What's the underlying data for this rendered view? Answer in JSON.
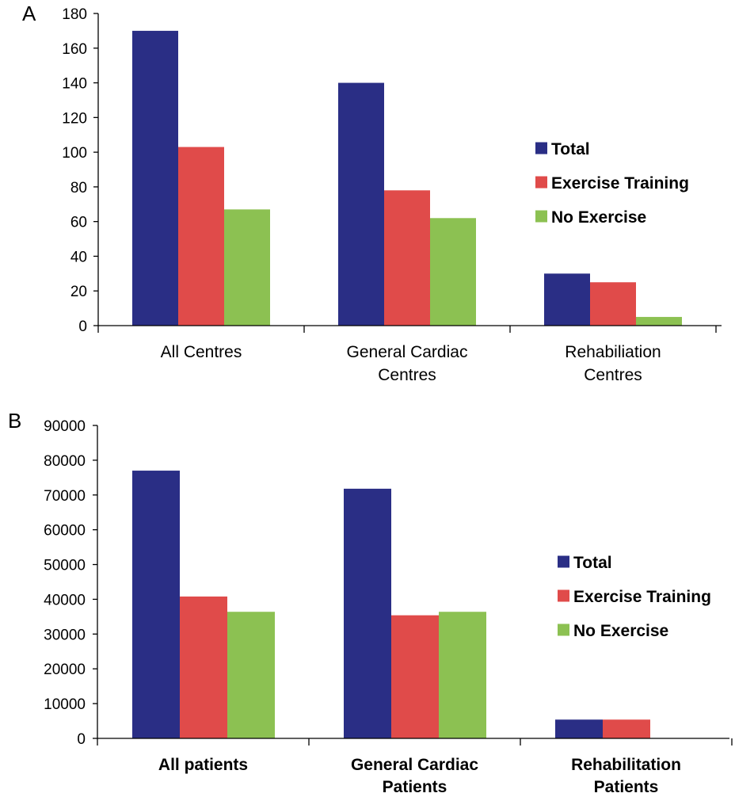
{
  "chart_data": [
    {
      "type": "bar",
      "panel_label": "A",
      "categories": [
        [
          "All Centres"
        ],
        [
          "General Cardiac",
          "Centres"
        ],
        [
          "Rehabiliation",
          "Centres"
        ]
      ],
      "category_style": "normal",
      "ylim": [
        0,
        180
      ],
      "yticks": [
        0,
        20,
        40,
        60,
        80,
        100,
        120,
        140,
        160,
        180
      ],
      "series": [
        {
          "name": "Total",
          "color": "#2a2e85",
          "values": [
            170,
            140,
            30
          ]
        },
        {
          "name": "Exercise Training",
          "color": "#e04b4a",
          "values": [
            103,
            78,
            25
          ]
        },
        {
          "name": "No Exercise",
          "color": "#8cc152",
          "values": [
            67,
            62,
            5
          ]
        }
      ],
      "legend_position": "right"
    },
    {
      "type": "bar",
      "panel_label": "B",
      "categories": [
        [
          "All patients"
        ],
        [
          "General Cardiac",
          "Patients"
        ],
        [
          "Rehabilitation",
          "Patients"
        ]
      ],
      "category_style": "bold",
      "ylim": [
        0,
        90000
      ],
      "yticks": [
        0,
        10000,
        20000,
        30000,
        40000,
        50000,
        60000,
        70000,
        80000,
        90000
      ],
      "series": [
        {
          "name": "Total",
          "color": "#2a2e85",
          "values": [
            77000,
            71800,
            5400
          ]
        },
        {
          "name": "Exercise Training",
          "color": "#e04b4a",
          "values": [
            40800,
            35400,
            5400
          ]
        },
        {
          "name": "No Exercise",
          "color": "#8cc152",
          "values": [
            36400,
            36400,
            0
          ]
        }
      ],
      "legend_position": "right"
    }
  ]
}
